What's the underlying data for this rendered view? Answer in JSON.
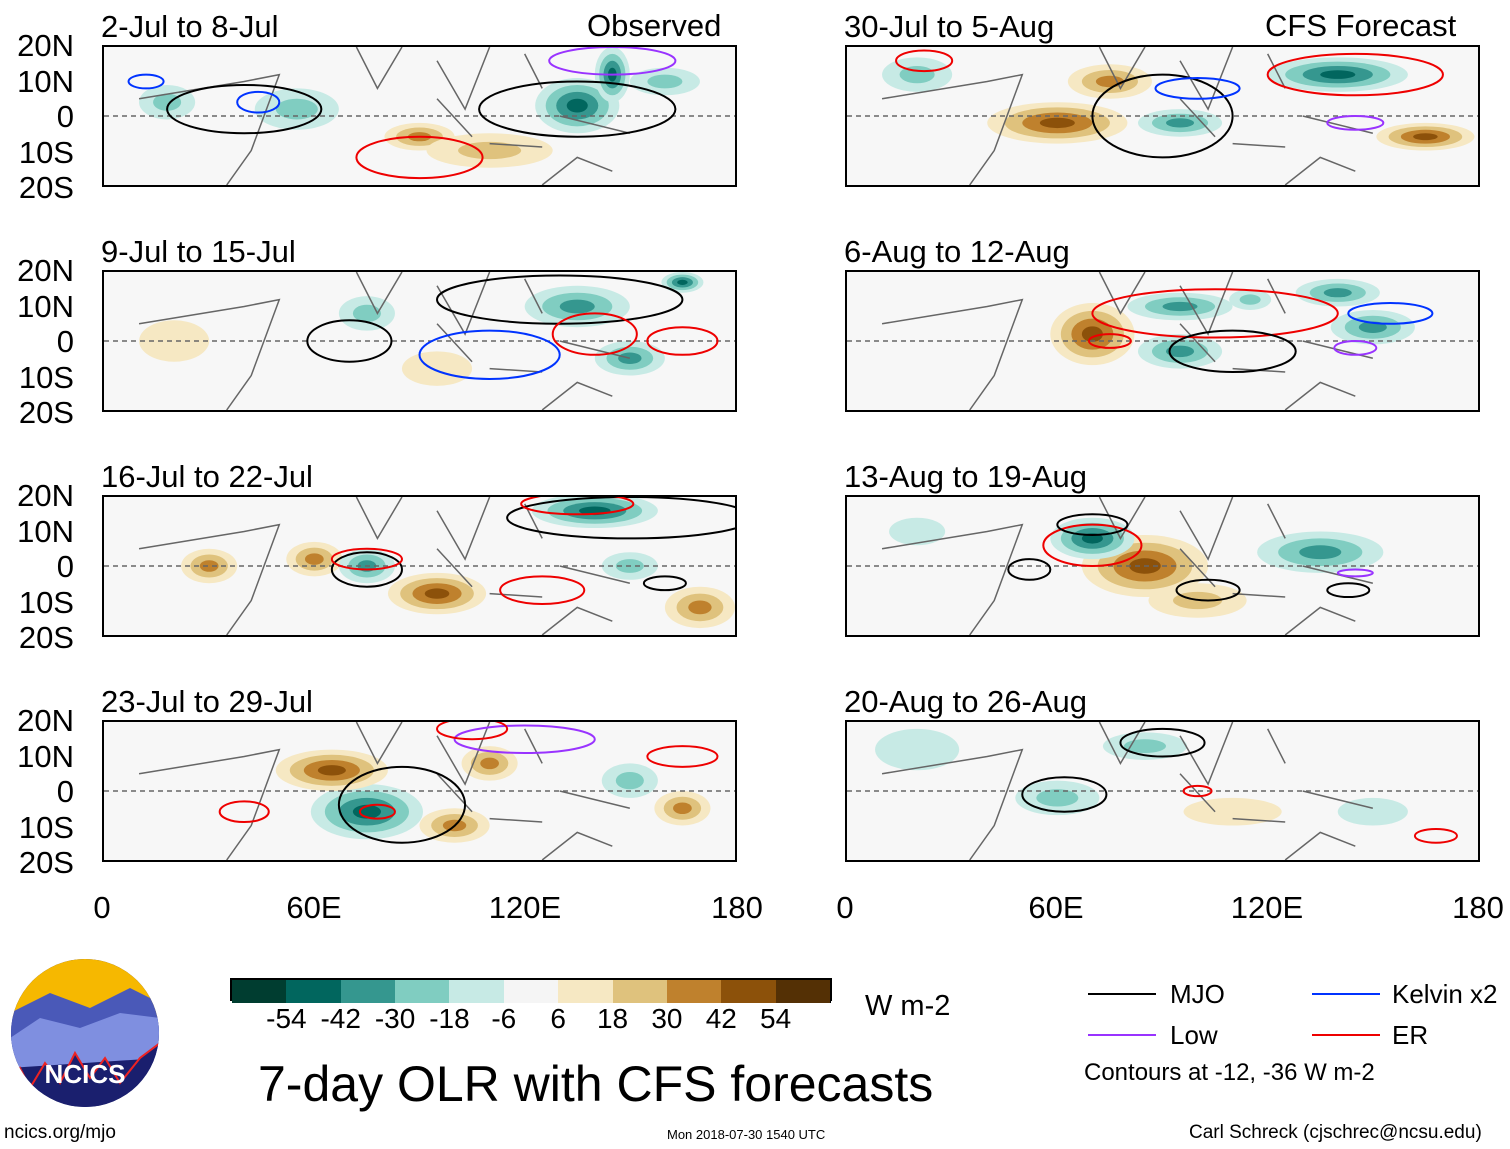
{
  "left_label": "Observed",
  "right_label": "CFS Forecast",
  "lat_ticks": [
    "20N",
    "10N",
    "0",
    "10S",
    "20S"
  ],
  "lon_ticks": [
    "0",
    "60E",
    "120E",
    "180"
  ],
  "panels_left": [
    {
      "title": "2-Jul to 8-Jul",
      "blobs": [
        [
          55,
          2,
          12,
          6,
          -20
        ],
        [
          90,
          -6,
          10,
          4,
          30
        ],
        [
          110,
          -10,
          18,
          5,
          20
        ],
        [
          135,
          3,
          12,
          8,
          -40
        ],
        [
          145,
          12,
          5,
          8,
          -54
        ],
        [
          18,
          4,
          8,
          5,
          -18
        ],
        [
          160,
          10,
          10,
          4,
          -20
        ]
      ],
      "contours": [
        [
          40,
          2,
          22,
          7,
          "#000"
        ],
        [
          135,
          2,
          28,
          8,
          "#000"
        ],
        [
          90,
          -12,
          18,
          6,
          "#e00"
        ],
        [
          145,
          16,
          18,
          4,
          "#9933ff"
        ],
        [
          12,
          10,
          5,
          2,
          "#0033ff"
        ],
        [
          44,
          4,
          6,
          3,
          "#0033ff"
        ]
      ]
    },
    {
      "title": "9-Jul to 15-Jul",
      "blobs": [
        [
          135,
          10,
          15,
          6,
          -30
        ],
        [
          150,
          -5,
          10,
          5,
          -30
        ],
        [
          75,
          8,
          8,
          5,
          -18
        ],
        [
          20,
          0,
          10,
          6,
          12
        ],
        [
          165,
          17,
          6,
          3,
          -54
        ],
        [
          95,
          -8,
          10,
          5,
          10
        ]
      ],
      "contours": [
        [
          130,
          12,
          35,
          7,
          "#000"
        ],
        [
          70,
          0,
          12,
          6,
          "#000"
        ],
        [
          110,
          -4,
          20,
          7,
          "#0033ff"
        ],
        [
          140,
          2,
          12,
          6,
          "#e00"
        ],
        [
          165,
          0,
          10,
          4,
          "#e00"
        ]
      ]
    },
    {
      "title": "16-Jul to 22-Jul",
      "blobs": [
        [
          140,
          16,
          18,
          5,
          -54
        ],
        [
          95,
          -8,
          14,
          6,
          42
        ],
        [
          60,
          2,
          8,
          5,
          36
        ],
        [
          30,
          0,
          8,
          5,
          30
        ],
        [
          150,
          0,
          8,
          4,
          -18
        ],
        [
          170,
          -12,
          10,
          6,
          30
        ],
        [
          75,
          0,
          8,
          5,
          -30
        ]
      ],
      "contours": [
        [
          150,
          14,
          35,
          6,
          "#000"
        ],
        [
          75,
          -1,
          10,
          5,
          "#000"
        ],
        [
          125,
          -7,
          12,
          4,
          "#e00"
        ],
        [
          75,
          2,
          10,
          3,
          "#e00"
        ],
        [
          135,
          18,
          16,
          3,
          "#e00"
        ],
        [
          160,
          -5,
          6,
          2,
          "#000"
        ]
      ]
    },
    {
      "title": "23-Jul to 29-Jul",
      "blobs": [
        [
          75,
          -6,
          16,
          8,
          -42
        ],
        [
          65,
          6,
          16,
          6,
          42
        ],
        [
          110,
          8,
          8,
          5,
          36
        ],
        [
          165,
          -5,
          8,
          5,
          30
        ],
        [
          100,
          -10,
          10,
          5,
          30
        ],
        [
          150,
          3,
          8,
          5,
          -18
        ]
      ],
      "contours": [
        [
          85,
          -4,
          18,
          11,
          "#000"
        ],
        [
          40,
          -6,
          7,
          3,
          "#e00"
        ],
        [
          165,
          10,
          10,
          3,
          "#e00"
        ],
        [
          120,
          15,
          20,
          4,
          "#9933ff"
        ],
        [
          105,
          18,
          10,
          3,
          "#e00"
        ],
        [
          78,
          -6,
          5,
          2,
          "#e00"
        ]
      ]
    }
  ],
  "panels_right": [
    {
      "title": "30-Jul to 5-Aug",
      "blobs": [
        [
          60,
          -2,
          20,
          6,
          42
        ],
        [
          95,
          -2,
          12,
          4,
          -30
        ],
        [
          140,
          12,
          20,
          5,
          -54
        ],
        [
          165,
          -6,
          14,
          4,
          42
        ],
        [
          75,
          10,
          12,
          5,
          30
        ],
        [
          20,
          12,
          10,
          5,
          -18
        ]
      ],
      "contours": [
        [
          90,
          0,
          20,
          12,
          "#000"
        ],
        [
          145,
          12,
          25,
          6,
          "#e00"
        ],
        [
          100,
          8,
          12,
          3,
          "#0033ff"
        ],
        [
          145,
          -2,
          8,
          2,
          "#9933ff"
        ],
        [
          22,
          16,
          8,
          3,
          "#e00"
        ]
      ]
    },
    {
      "title": "6-Aug to 12-Aug",
      "blobs": [
        [
          70,
          2,
          12,
          9,
          42
        ],
        [
          95,
          -3,
          12,
          5,
          -30
        ],
        [
          95,
          10,
          15,
          4,
          -30
        ],
        [
          140,
          14,
          12,
          4,
          -30
        ],
        [
          150,
          4,
          12,
          5,
          -30
        ],
        [
          115,
          12,
          6,
          3,
          -18
        ]
      ],
      "contours": [
        [
          105,
          8,
          35,
          7,
          "#e00"
        ],
        [
          110,
          -3,
          18,
          6,
          "#000"
        ],
        [
          155,
          8,
          12,
          3,
          "#0033ff"
        ],
        [
          75,
          0,
          6,
          2,
          "#e00"
        ],
        [
          145,
          -2,
          6,
          2,
          "#9933ff"
        ]
      ]
    },
    {
      "title": "13-Aug to 19-Aug",
      "blobs": [
        [
          85,
          0,
          18,
          9,
          54
        ],
        [
          70,
          8,
          12,
          6,
          -42
        ],
        [
          135,
          4,
          18,
          6,
          -30
        ],
        [
          20,
          10,
          8,
          4,
          -12
        ],
        [
          100,
          -10,
          14,
          5,
          18
        ]
      ],
      "contours": [
        [
          70,
          6,
          14,
          6,
          "#e00"
        ],
        [
          70,
          12,
          10,
          3,
          "#000"
        ],
        [
          52,
          -1,
          6,
          3,
          "#000"
        ],
        [
          103,
          -7,
          9,
          3,
          "#000"
        ],
        [
          143,
          -7,
          6,
          2,
          "#000"
        ],
        [
          145,
          -2,
          5,
          1,
          "#9933ff"
        ]
      ]
    },
    {
      "title": "20-Aug to 26-Aug",
      "blobs": [
        [
          60,
          -2,
          12,
          5,
          -18
        ],
        [
          85,
          13,
          12,
          4,
          -18
        ],
        [
          110,
          -6,
          14,
          4,
          12
        ],
        [
          150,
          -6,
          10,
          4,
          -12
        ],
        [
          20,
          12,
          12,
          6,
          -12
        ]
      ],
      "contours": [
        [
          90,
          14,
          12,
          4,
          "#000"
        ],
        [
          62,
          -1,
          12,
          5,
          "#000"
        ],
        [
          100,
          0,
          4,
          1.5,
          "#e00"
        ],
        [
          168,
          -13,
          6,
          2,
          "#e00"
        ]
      ]
    }
  ],
  "colorbar": {
    "colors": [
      "#003d30",
      "#01665e",
      "#35978f",
      "#80cdc1",
      "#c7eae5",
      "#f5f5f5",
      "#f6e8c3",
      "#dfc27d",
      "#bf812d",
      "#8c510a",
      "#543005"
    ],
    "labels": [
      "-54",
      "-42",
      "-30",
      "-18",
      "-6",
      "6",
      "18",
      "30",
      "42",
      "54"
    ],
    "units": "W m-2"
  },
  "title": "7-day OLR with CFS forecasts",
  "legend": {
    "items": [
      {
        "label": "MJO",
        "color": "#000000"
      },
      {
        "label": "Kelvin x2",
        "color": "#0033ff"
      },
      {
        "label": "Low",
        "color": "#9933ff"
      },
      {
        "label": "ER",
        "color": "#ee0000"
      }
    ],
    "note": "Contours at -12, -36 W m-2"
  },
  "logo_text": "NCICS",
  "website": "ncics.org/mjo",
  "timestamp": "Mon 2018-07-30 1540 UTC",
  "credit": "Carl Schreck (cjschrec@ncsu.edu)"
}
